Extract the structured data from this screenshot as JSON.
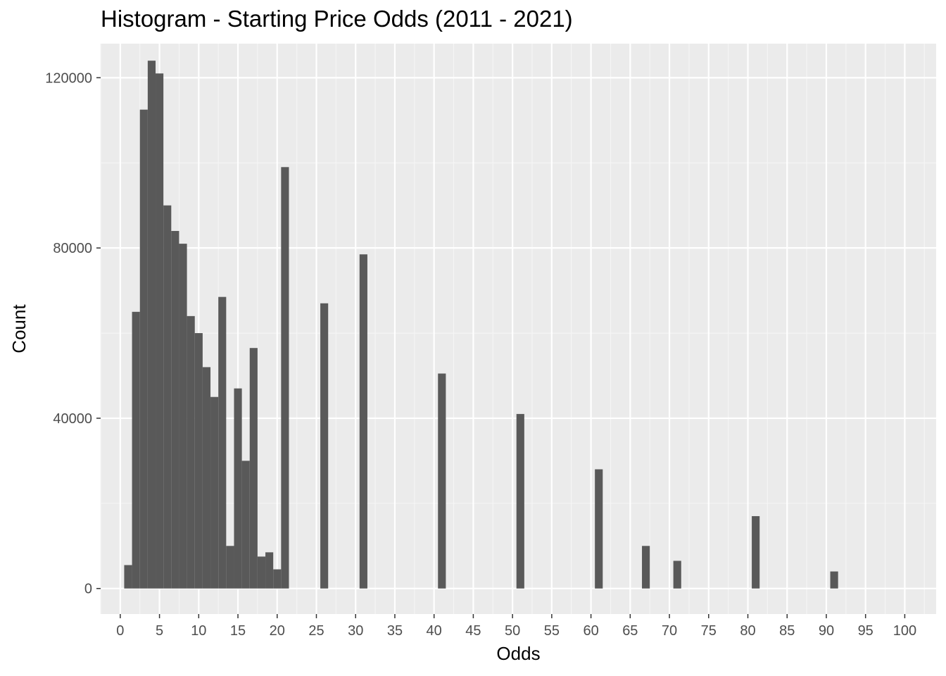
{
  "chart_data": {
    "type": "bar",
    "title": "Histogram - Starting Price Odds (2011 - 2021)",
    "xlabel": "Odds",
    "ylabel": "Count",
    "xlim": [
      -2.5,
      104
    ],
    "ylim": [
      -6000,
      128000
    ],
    "x_ticks": [
      0,
      5,
      10,
      15,
      20,
      25,
      30,
      35,
      40,
      45,
      50,
      55,
      60,
      65,
      70,
      75,
      80,
      85,
      90,
      95,
      100
    ],
    "y_ticks": [
      0,
      40000,
      80000,
      120000
    ],
    "bin_width": 1,
    "grid": true,
    "bars": [
      {
        "x": 1,
        "y": 5500
      },
      {
        "x": 2,
        "y": 65000
      },
      {
        "x": 3,
        "y": 112500
      },
      {
        "x": 4,
        "y": 124000
      },
      {
        "x": 5,
        "y": 121000
      },
      {
        "x": 6,
        "y": 90000
      },
      {
        "x": 7,
        "y": 84000
      },
      {
        "x": 8,
        "y": 81000
      },
      {
        "x": 9,
        "y": 64000
      },
      {
        "x": 10,
        "y": 60000
      },
      {
        "x": 11,
        "y": 52000
      },
      {
        "x": 12,
        "y": 45000
      },
      {
        "x": 13,
        "y": 68500
      },
      {
        "x": 14,
        "y": 10000
      },
      {
        "x": 15,
        "y": 47000
      },
      {
        "x": 16,
        "y": 30000
      },
      {
        "x": 17,
        "y": 56500
      },
      {
        "x": 18,
        "y": 7500
      },
      {
        "x": 19,
        "y": 8500
      },
      {
        "x": 20,
        "y": 4500
      },
      {
        "x": 21,
        "y": 99000
      },
      {
        "x": 26,
        "y": 67000
      },
      {
        "x": 31,
        "y": 78500
      },
      {
        "x": 41,
        "y": 50500
      },
      {
        "x": 51,
        "y": 41000
      },
      {
        "x": 61,
        "y": 28000
      },
      {
        "x": 67,
        "y": 10000
      },
      {
        "x": 71,
        "y": 6500
      },
      {
        "x": 81,
        "y": 17000
      },
      {
        "x": 91,
        "y": 4000
      }
    ],
    "colors": {
      "bar": "#595959",
      "panel": "#ebebeb",
      "grid_major": "#ffffff",
      "grid_minor": "#f5f5f5",
      "tick_text": "#4d4d4d",
      "tick_mark": "#333333"
    }
  }
}
